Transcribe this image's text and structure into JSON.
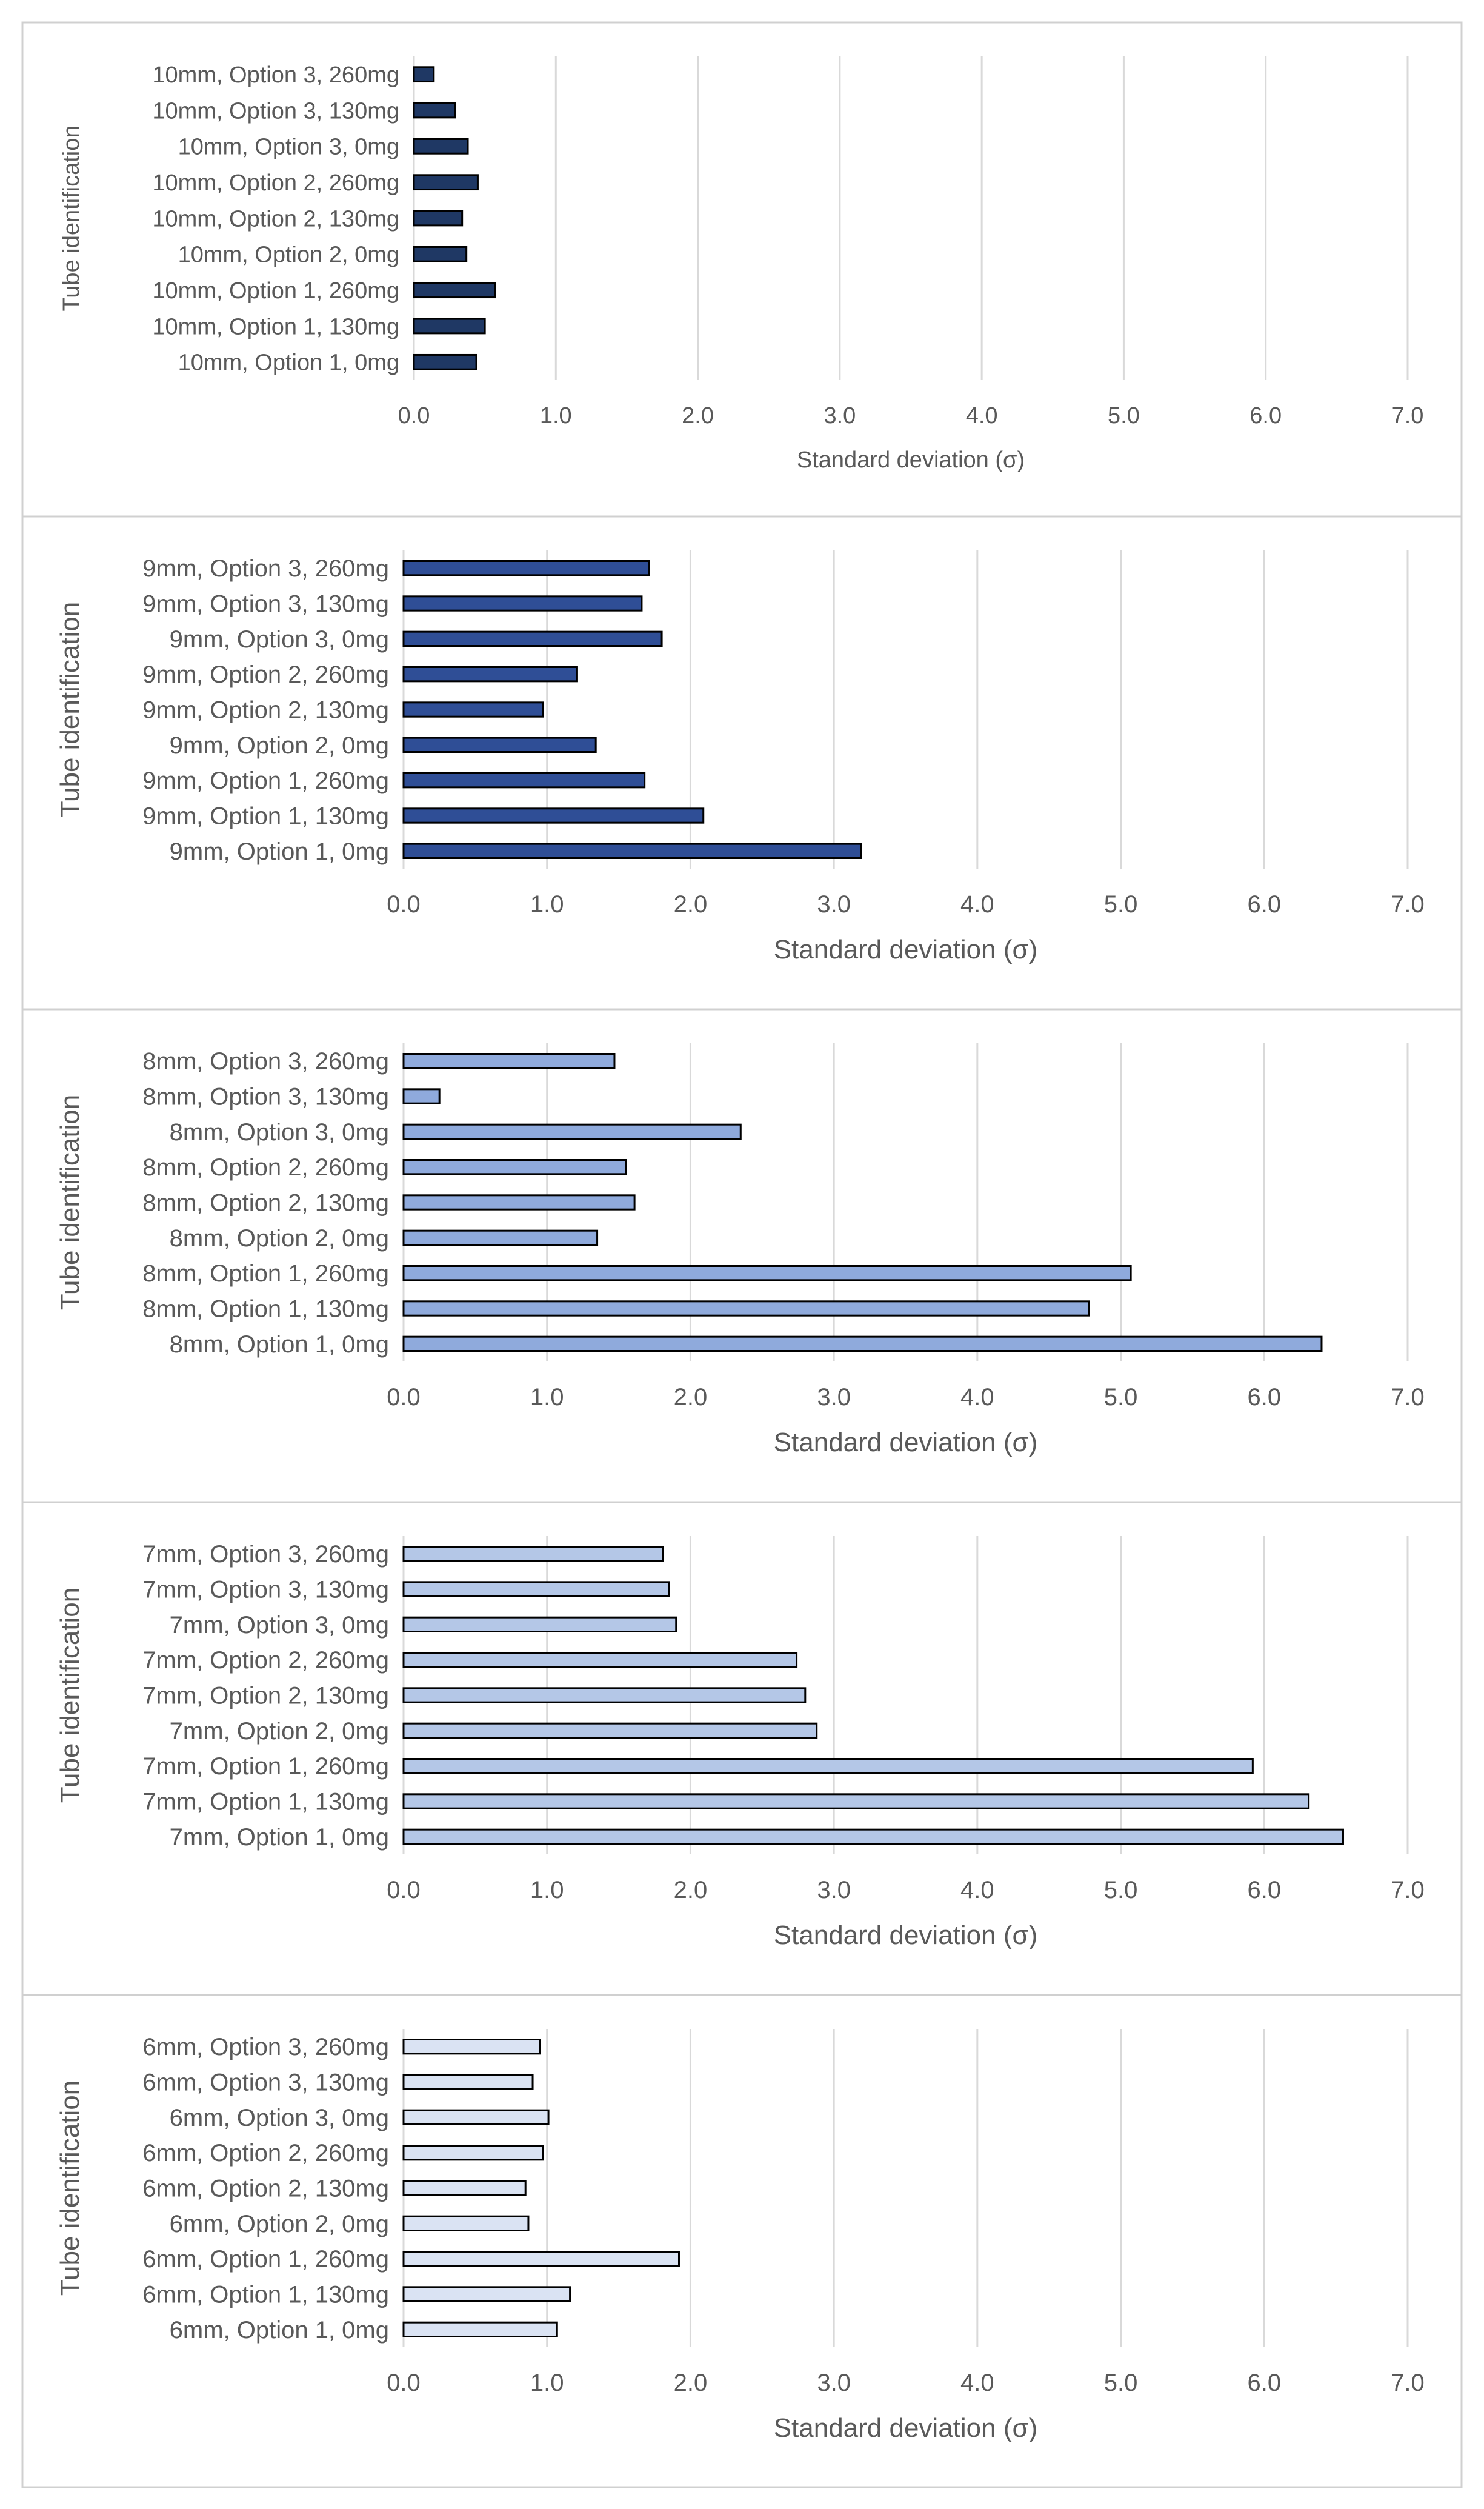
{
  "chart_data": [
    {
      "type": "bar",
      "orientation": "horizontal",
      "title": "",
      "xlabel": "Standard deviation (σ)",
      "ylabel": "Tube identification",
      "xlim": [
        0,
        7
      ],
      "xticks": [
        "0.0",
        "1.0",
        "2.0",
        "3.0",
        "4.0",
        "5.0",
        "6.0",
        "7.0"
      ],
      "grid": true,
      "legend": "none",
      "bar_color": "#1f3864",
      "categories": [
        "10mm, Option 1, 0mg",
        "10mm, Option 1, 130mg",
        "10mm, Option 1, 260mg",
        "10mm, Option 2, 0mg",
        "10mm, Option 2, 130mg",
        "10mm, Option 2, 260mg",
        "10mm, Option 3, 0mg",
        "10mm, Option 3, 130mg",
        "10mm, Option 3, 260mg"
      ],
      "values": [
        0.44,
        0.5,
        0.57,
        0.37,
        0.34,
        0.45,
        0.38,
        0.29,
        0.14
      ]
    },
    {
      "type": "bar",
      "orientation": "horizontal",
      "title": "",
      "xlabel": "Standard deviation (σ)",
      "ylabel": "Tube identification",
      "xlim": [
        0,
        7
      ],
      "xticks": [
        "0.0",
        "1.0",
        "2.0",
        "3.0",
        "4.0",
        "5.0",
        "6.0",
        "7.0"
      ],
      "grid": true,
      "legend": "none",
      "bar_color": "#2f4e96",
      "categories": [
        "9mm, Option 1, 0mg",
        "9mm, Option 1, 130mg",
        "9mm, Option 1, 260mg",
        "9mm, Option 2, 0mg",
        "9mm, Option 2, 130mg",
        "9mm, Option 2, 260mg",
        "9mm, Option 3, 0mg",
        "9mm, Option 3, 130mg",
        "9mm, Option 3, 260mg"
      ],
      "values": [
        3.19,
        2.09,
        1.68,
        1.34,
        0.97,
        1.21,
        1.8,
        1.66,
        1.71
      ]
    },
    {
      "type": "bar",
      "orientation": "horizontal",
      "title": "",
      "xlabel": "Standard deviation (σ)",
      "ylabel": "Tube identification",
      "xlim": [
        0,
        7
      ],
      "xticks": [
        "0.0",
        "1.0",
        "2.0",
        "3.0",
        "4.0",
        "5.0",
        "6.0",
        "7.0"
      ],
      "grid": true,
      "legend": "none",
      "bar_color": "#8faadc",
      "categories": [
        "8mm, Option 1, 0mg",
        "8mm, Option 1, 130mg",
        "8mm, Option 1, 260mg",
        "8mm, Option 2, 0mg",
        "8mm, Option 2, 130mg",
        "8mm, Option 2, 260mg",
        "8mm, Option 3, 0mg",
        "8mm, Option 3, 130mg",
        "8mm, Option 3, 260mg"
      ],
      "values": [
        6.4,
        4.78,
        5.07,
        1.35,
        1.61,
        1.55,
        2.35,
        0.25,
        1.47
      ]
    },
    {
      "type": "bar",
      "orientation": "horizontal",
      "title": "",
      "xlabel": "Standard deviation (σ)",
      "ylabel": "Tube identification",
      "xlim": [
        0,
        7
      ],
      "xticks": [
        "0.0",
        "1.0",
        "2.0",
        "3.0",
        "4.0",
        "5.0",
        "6.0",
        "7.0"
      ],
      "grid": true,
      "legend": "none",
      "bar_color": "#b4c7e7",
      "categories": [
        "7mm, Option 1, 0mg",
        "7mm, Option 1, 130mg",
        "7mm, Option 1, 260mg",
        "7mm, Option 2, 0mg",
        "7mm, Option 2, 130mg",
        "7mm, Option 2, 260mg",
        "7mm, Option 3, 0mg",
        "7mm, Option 3, 130mg",
        "7mm, Option 3, 260mg"
      ],
      "values": [
        6.55,
        6.31,
        5.92,
        2.88,
        2.8,
        2.74,
        1.9,
        1.85,
        1.81
      ]
    },
    {
      "type": "bar",
      "orientation": "horizontal",
      "title": "",
      "xlabel": "Standard deviation (σ)",
      "ylabel": "Tube identification",
      "xlim": [
        0,
        7
      ],
      "xticks": [
        "0.0",
        "1.0",
        "2.0",
        "3.0",
        "4.0",
        "5.0",
        "6.0",
        "7.0"
      ],
      "grid": true,
      "legend": "none",
      "bar_color": "#dae3f3",
      "categories": [
        "6mm, Option 1, 0mg",
        "6mm, Option 1, 130mg",
        "6mm, Option 1, 260mg",
        "6mm, Option 2, 0mg",
        "6mm, Option 2, 130mg",
        "6mm, Option 2, 260mg",
        "6mm, Option 3, 0mg",
        "6mm, Option 3, 130mg",
        "6mm, Option 3, 260mg"
      ],
      "values": [
        1.07,
        1.16,
        1.92,
        0.87,
        0.85,
        0.97,
        1.01,
        0.9,
        0.95
      ]
    }
  ]
}
